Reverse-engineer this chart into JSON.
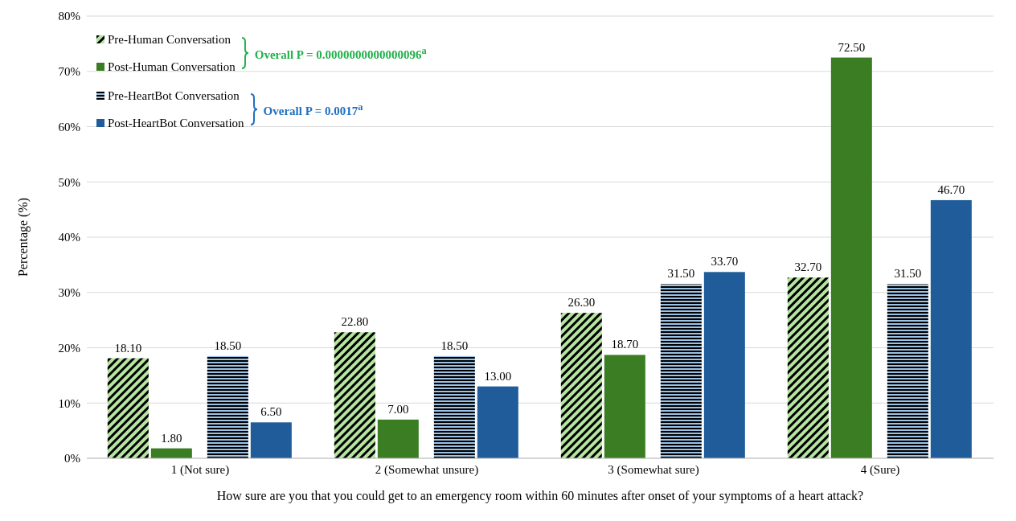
{
  "chart_data": {
    "type": "bar",
    "xlabel": "How sure are you that you could get to an emergency room within 60 minutes after onset of your symptoms of a heart attack?",
    "ylabel": "Percentage (%)",
    "categories": [
      "1 (Not sure)",
      "2 (Somewhat unsure)",
      "3 (Somewhat sure)",
      "4 (Sure)"
    ],
    "series": [
      {
        "name": "Pre-Human Conversation",
        "color": "#b5e5a0",
        "values": [
          18.1,
          22.8,
          26.3,
          32.7
        ],
        "value_labels": [
          "18.10",
          "22.80",
          "26.30",
          "32.70"
        ]
      },
      {
        "name": "Post-Human Conversation",
        "color": "#3a7d23",
        "values": [
          1.8,
          7.0,
          18.7,
          72.5
        ],
        "value_labels": [
          "1.80",
          "7.00",
          "18.70",
          "72.50"
        ]
      },
      {
        "name": "Pre-HeartBot Conversation",
        "color": "#9cc3e6",
        "values": [
          18.5,
          18.5,
          31.5,
          31.5
        ],
        "value_labels": [
          "18.50",
          "18.50",
          "31.50",
          "31.50"
        ]
      },
      {
        "name": "Post-HeartBot Conversation",
        "color": "#1f5c99",
        "values": [
          6.5,
          13.0,
          33.7,
          46.7
        ],
        "value_labels": [
          "6.50",
          "13.00",
          "33.70",
          "46.70"
        ]
      }
    ],
    "ylim": [
      0,
      80
    ],
    "yticks": [
      {
        "value": 0,
        "label": "0%"
      },
      {
        "value": 10,
        "label": "10%"
      },
      {
        "value": 20,
        "label": "20%"
      },
      {
        "value": 30,
        "label": "30%"
      },
      {
        "value": 40,
        "label": "40%"
      },
      {
        "value": 50,
        "label": "50%"
      },
      {
        "value": 60,
        "label": "60%"
      },
      {
        "value": 70,
        "label": "70%"
      },
      {
        "value": 80,
        "label": "80%"
      }
    ],
    "grid": "y",
    "legend": "top left",
    "annotations": [
      "Overall P = 0.0000000000000096$^{a}$",
      "Overall P = 0.0017$^{a}$"
    ]
  }
}
